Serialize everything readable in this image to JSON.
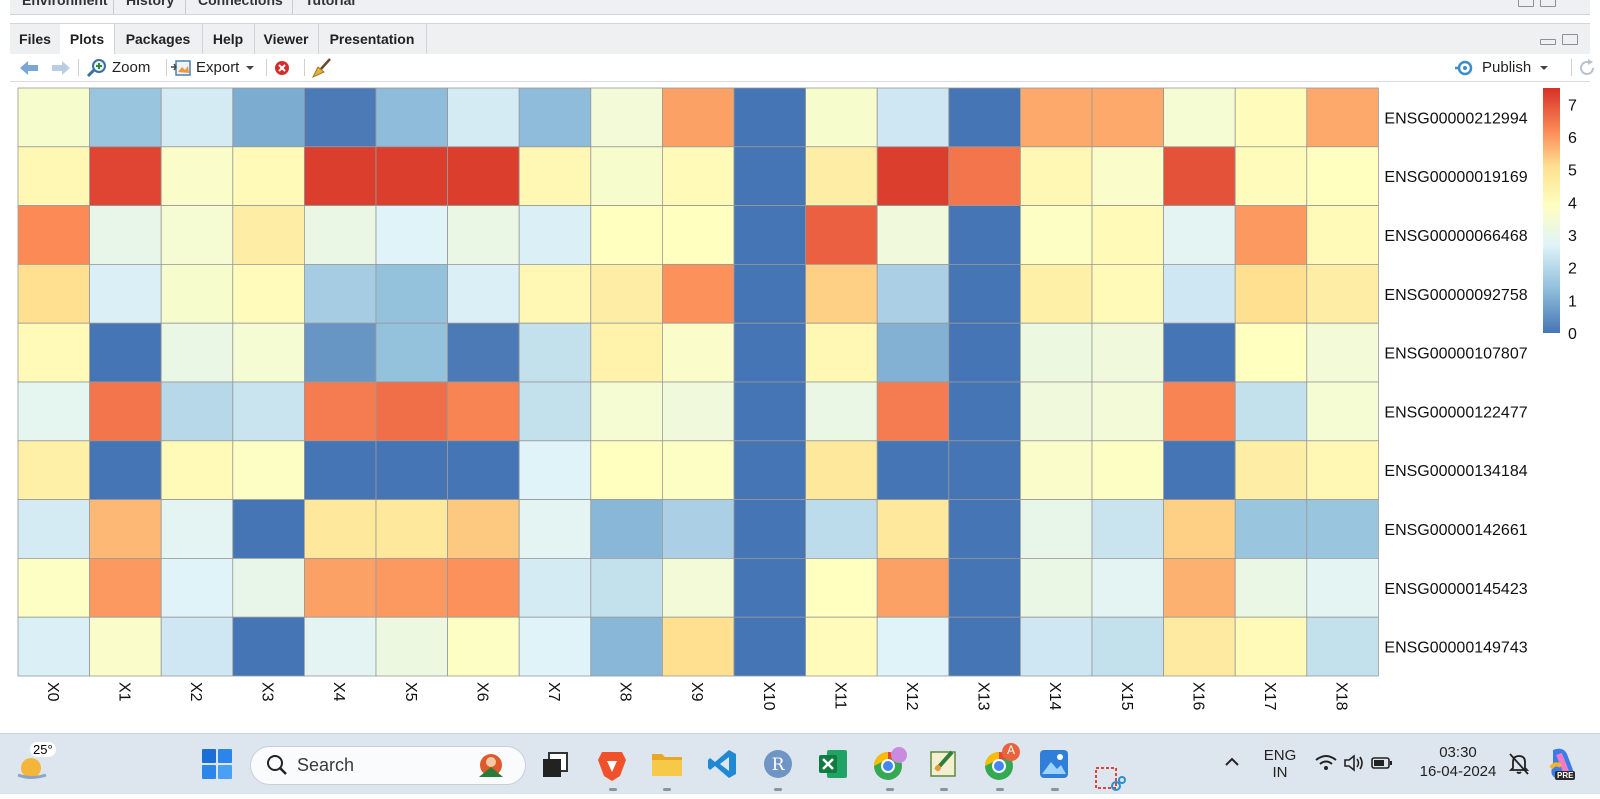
{
  "top_pane": {
    "tabs": [
      "Environment",
      "History",
      "Connections",
      "Tutorial"
    ]
  },
  "pane_tabs": [
    {
      "label": "Files",
      "active": false
    },
    {
      "label": "Plots",
      "active": true
    },
    {
      "label": "Packages",
      "active": false
    },
    {
      "label": "Help",
      "active": false
    },
    {
      "label": "Viewer",
      "active": false
    },
    {
      "label": "Presentation",
      "active": false
    }
  ],
  "toolbar": {
    "zoom_label": "Zoom",
    "export_label": "Export",
    "publish_label": "Publish",
    "icons": [
      "back-arrow-icon",
      "forward-arrow-icon",
      "zoom-icon",
      "export-icon",
      "remove-plot-icon",
      "broom-icon",
      "publish-icon",
      "refresh-icon"
    ]
  },
  "chart_data": {
    "type": "heatmap",
    "title": "",
    "columns": [
      "X0",
      "X1",
      "X2",
      "X3",
      "X4",
      "X5",
      "X6",
      "X7",
      "X8",
      "X9",
      "X10",
      "X11",
      "X12",
      "X13",
      "X14",
      "X15",
      "X16",
      "X17",
      "X18"
    ],
    "rows": [
      "ENSG00000212994",
      "ENSG00000019169",
      "ENSG00000066468",
      "ENSG00000092758",
      "ENSG00000107807",
      "ENSG00000122477",
      "ENSG00000134184",
      "ENSG00000142661",
      "ENSG00000145423",
      "ENSG00000149743"
    ],
    "values": [
      [
        3.6,
        1.5,
        2.5,
        1.0,
        0.1,
        1.3,
        2.5,
        1.3,
        3.4,
        5.9,
        0.0,
        3.6,
        2.4,
        0.0,
        5.8,
        5.8,
        3.5,
        4.0,
        5.8
      ],
      [
        4.2,
        7.2,
        3.7,
        4.1,
        7.3,
        7.3,
        7.3,
        4.2,
        3.6,
        4.1,
        0.0,
        4.6,
        7.3,
        6.5,
        4.2,
        3.7,
        7.0,
        4.0,
        3.9
      ],
      [
        6.2,
        3.0,
        3.5,
        4.6,
        3.1,
        2.7,
        3.1,
        2.6,
        3.9,
        3.9,
        0.0,
        6.8,
        3.3,
        0.0,
        3.8,
        4.1,
        2.8,
        6.0,
        4.1
      ],
      [
        5.1,
        2.6,
        3.6,
        4.0,
        1.7,
        1.4,
        2.6,
        4.2,
        4.6,
        6.1,
        0.0,
        5.3,
        1.8,
        0.0,
        4.5,
        4.1,
        2.4,
        5.1,
        4.6
      ],
      [
        4.1,
        0.0,
        3.1,
        3.5,
        0.6,
        1.4,
        0.1,
        2.2,
        4.4,
        3.7,
        0.0,
        4.2,
        1.1,
        0.0,
        3.2,
        3.3,
        0.0,
        3.9,
        3.4
      ],
      [
        2.9,
        6.5,
        2.0,
        2.3,
        6.4,
        6.6,
        6.3,
        2.2,
        3.5,
        3.3,
        0.0,
        3.1,
        6.4,
        0.0,
        3.3,
        3.4,
        6.3,
        2.2,
        3.5
      ],
      [
        4.5,
        0.0,
        4.1,
        3.8,
        0.0,
        0.0,
        0.0,
        2.7,
        3.9,
        3.8,
        0.0,
        4.8,
        0.0,
        0.0,
        3.7,
        3.8,
        0.0,
        4.6,
        4.2
      ],
      [
        2.5,
        5.6,
        2.8,
        0.0,
        4.8,
        4.8,
        5.4,
        2.8,
        1.2,
        1.8,
        0.0,
        2.1,
        4.8,
        0.0,
        3.0,
        2.3,
        5.3,
        1.5,
        1.5
      ],
      [
        3.8,
        6.0,
        2.7,
        3.0,
        5.9,
        6.0,
        6.1,
        2.5,
        2.2,
        3.4,
        0.0,
        3.9,
        5.9,
        0.0,
        3.1,
        2.8,
        5.7,
        3.1,
        2.8
      ],
      [
        2.6,
        3.7,
        2.4,
        0.0,
        2.8,
        3.2,
        3.8,
        2.7,
        1.2,
        5.1,
        0.0,
        4.0,
        2.7,
        0.0,
        2.4,
        2.2,
        4.7,
        4.1,
        2.2
      ]
    ],
    "legend": {
      "ticks": [
        0,
        1,
        2,
        3,
        4,
        5,
        6,
        7
      ],
      "range": [
        0,
        7.5
      ],
      "placement": "right"
    },
    "colors": {
      "low": "#4575b4",
      "mid": "#ffffbf",
      "high": "#d73027",
      "grid": "#999999"
    }
  },
  "taskbar": {
    "weather_temp": "25°",
    "search_label": "Search",
    "apps": [
      "start-icon",
      "search-icon",
      "task-view-icon",
      "brave-icon",
      "file-explorer-icon",
      "vscode-icon",
      "r-icon",
      "excel-icon",
      "chrome-icon",
      "paint-icon",
      "chrome-profile-icon",
      "photos-icon",
      "snipping-tool-icon"
    ],
    "chrome_badge": "A",
    "language": "ENG",
    "region": "IN",
    "time": "03:30",
    "date": "16-04-2024",
    "copilot_badge": "PRE"
  }
}
